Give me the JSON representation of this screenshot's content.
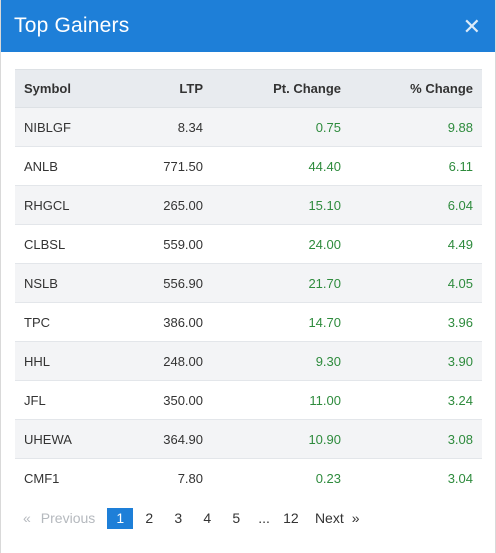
{
  "modal": {
    "title": "Top Gainers",
    "close_glyph": "✕"
  },
  "table": {
    "headers": [
      "Symbol",
      "LTP",
      "Pt. Change",
      "% Change"
    ],
    "rows": [
      {
        "symbol": "NIBLGF",
        "ltp": "8.34",
        "pt_change": "0.75",
        "pct_change": "9.88"
      },
      {
        "symbol": "ANLB",
        "ltp": "771.50",
        "pt_change": "44.40",
        "pct_change": "6.11"
      },
      {
        "symbol": "RHGCL",
        "ltp": "265.00",
        "pt_change": "15.10",
        "pct_change": "6.04"
      },
      {
        "symbol": "CLBSL",
        "ltp": "559.00",
        "pt_change": "24.00",
        "pct_change": "4.49"
      },
      {
        "symbol": "NSLB",
        "ltp": "556.90",
        "pt_change": "21.70",
        "pct_change": "4.05"
      },
      {
        "symbol": "TPC",
        "ltp": "386.00",
        "pt_change": "14.70",
        "pct_change": "3.96"
      },
      {
        "symbol": "HHL",
        "ltp": "248.00",
        "pt_change": "9.30",
        "pct_change": "3.90"
      },
      {
        "symbol": "JFL",
        "ltp": "350.00",
        "pt_change": "11.00",
        "pct_change": "3.24"
      },
      {
        "symbol": "UHEWA",
        "ltp": "364.90",
        "pt_change": "10.90",
        "pct_change": "3.08"
      },
      {
        "symbol": "CMF1",
        "ltp": "7.80",
        "pt_change": "0.23",
        "pct_change": "3.04"
      }
    ]
  },
  "pagination": {
    "prev_arrow": "«",
    "prev_label": "Previous",
    "pages": [
      "1",
      "2",
      "3",
      "4",
      "5"
    ],
    "ellipsis": "...",
    "last_page": "12",
    "next_label": "Next",
    "next_arrow": "»",
    "current": "1"
  },
  "colors": {
    "header_bg": "#1e7fd8",
    "positive": "#2e8b3d",
    "active_page": "#1e7fd8"
  }
}
